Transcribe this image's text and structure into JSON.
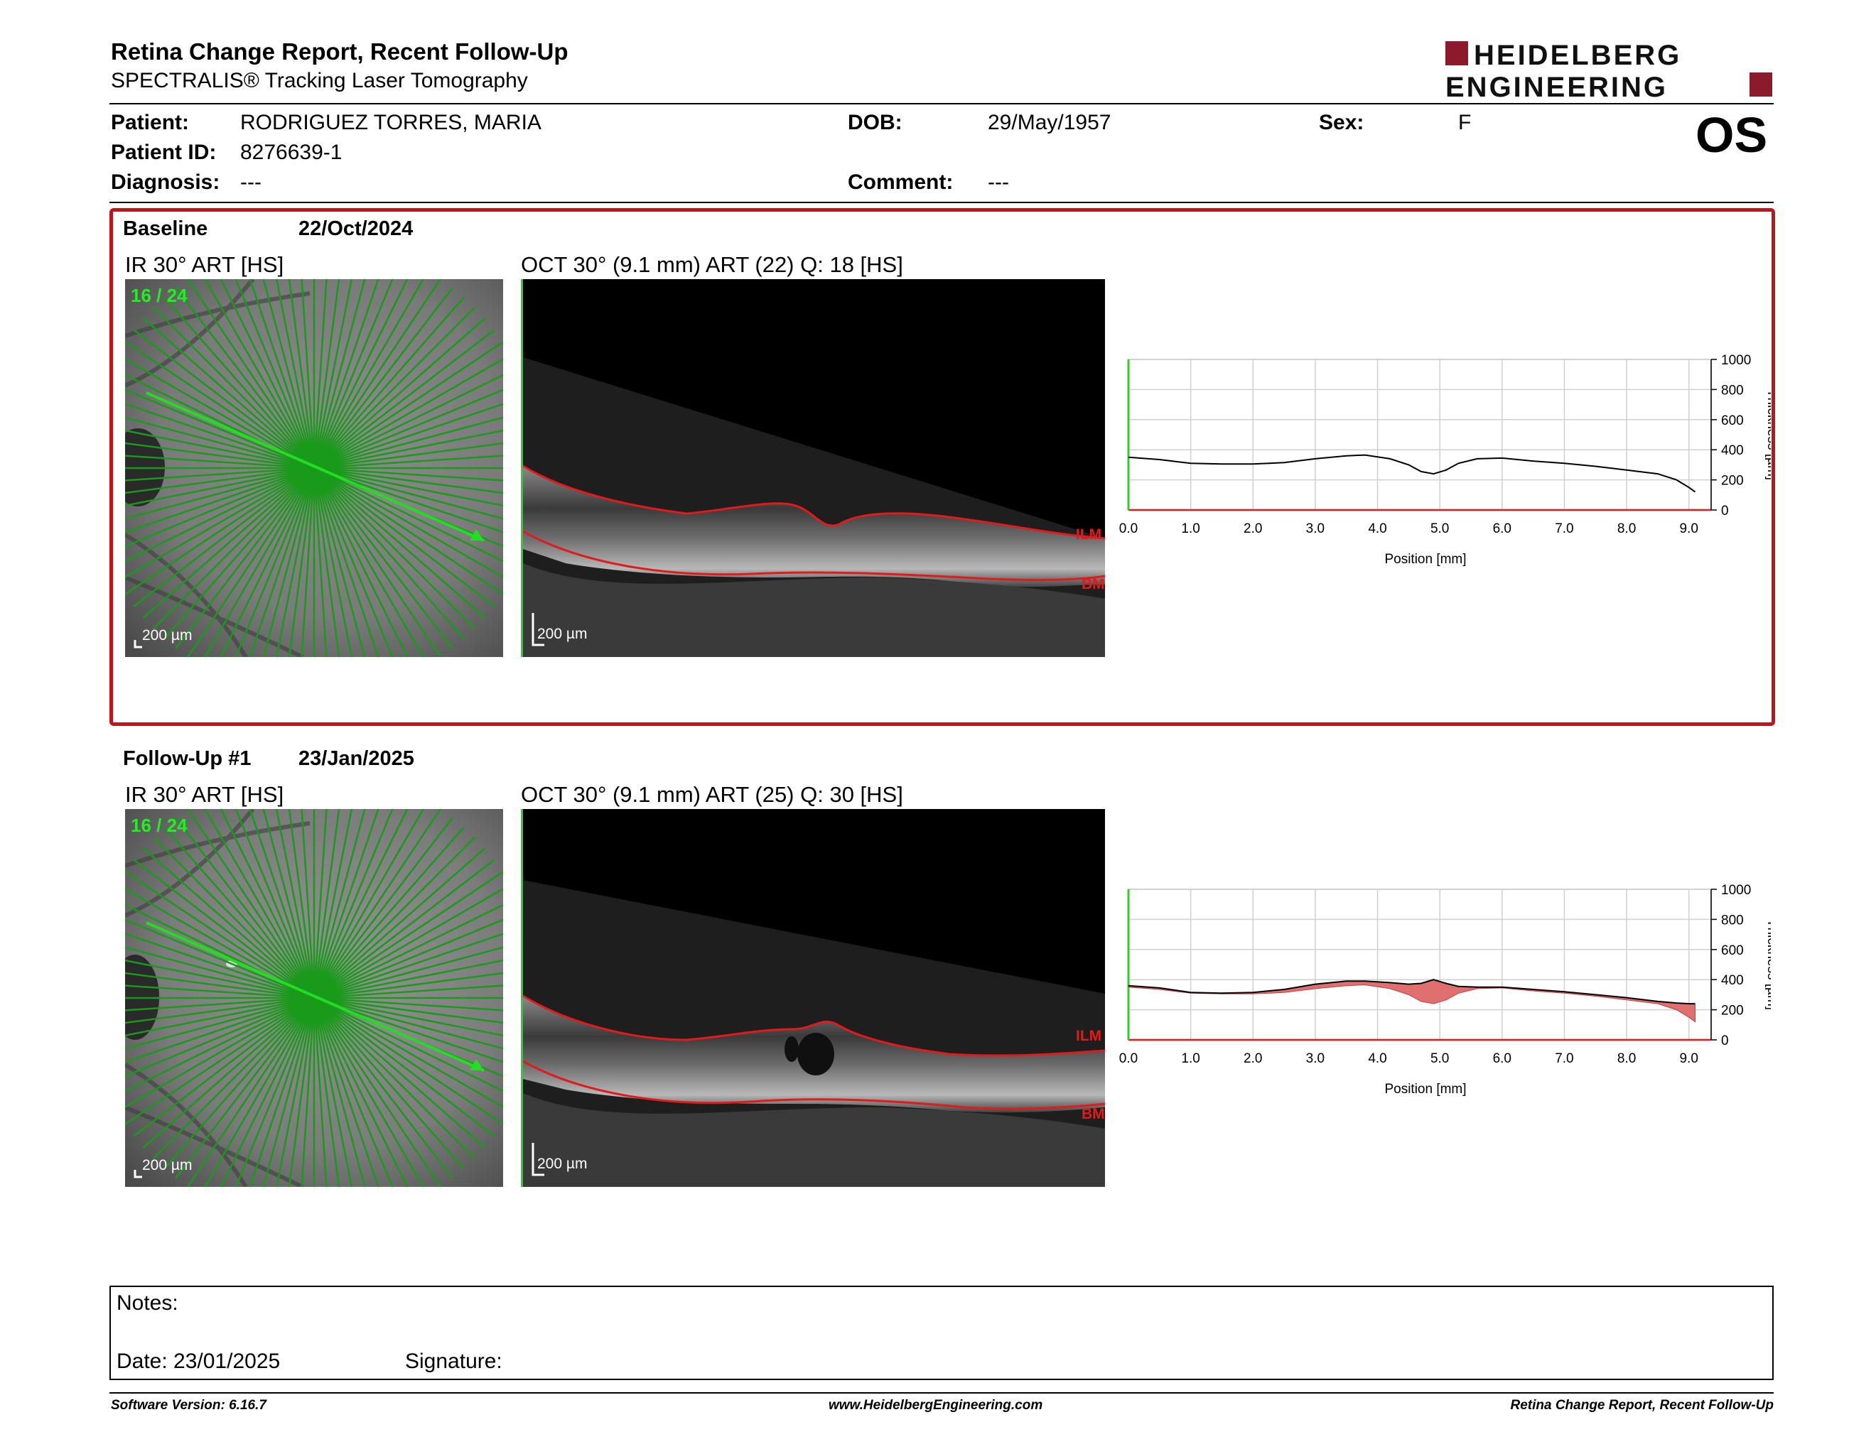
{
  "header": {
    "title": "Retina Change Report, Recent Follow-Up",
    "subtitle": "SPECTRALIS® Tracking Laser Tomography",
    "logo_line1": "HEIDELBERG",
    "logo_line2": "ENGINEERING",
    "logo_color": "#8b1a2b"
  },
  "patient": {
    "patient_label": "Patient:",
    "patient_value": "RODRIGUEZ TORRES, MARIA",
    "id_label": "Patient ID:",
    "id_value": "8276639-1",
    "diagnosis_label": "Diagnosis:",
    "diagnosis_value": "---",
    "dob_label": "DOB:",
    "dob_value": "29/May/1957",
    "comment_label": "Comment:",
    "comment_value": "---",
    "sex_label": "Sex:",
    "sex_value": "F",
    "eye": "OS"
  },
  "baseline": {
    "label": "Baseline",
    "date": "22/Oct/2024",
    "ir_title": "IR 30° ART [HS]",
    "ir_counter": "16 / 24",
    "ir_scale": "200 µm",
    "oct_title": "OCT 30° (9.1 mm) ART (22) Q: 18 [HS]",
    "oct_scale": "200 µm",
    "ilm_label": "ILM",
    "bm_label": "BM"
  },
  "followup": {
    "label": "Follow-Up #1",
    "date": "23/Jan/2025",
    "ir_title": "IR 30° ART [HS]",
    "ir_counter": "16 / 24",
    "ir_scale": "200 µm",
    "oct_title": "OCT 30° (9.1 mm) ART (25) Q: 30 [HS]",
    "oct_scale": "200 µm",
    "ilm_label": "ILM",
    "bm_label": "BM"
  },
  "chart_data": [
    {
      "type": "line",
      "name": "baseline-thickness",
      "xlabel": "Position [mm]",
      "ylabel": "Thickness [µm]",
      "xlim": [
        0,
        9.1
      ],
      "ylim": [
        0,
        1000
      ],
      "xticks": [
        "0.0",
        "1.0",
        "2.0",
        "3.0",
        "4.0",
        "5.0",
        "6.0",
        "7.0",
        "8.0",
        "9.0"
      ],
      "yticks": [
        "0",
        "200",
        "400",
        "600",
        "800",
        "1000"
      ],
      "grid": true,
      "line_color": "#000000",
      "x": [
        0.0,
        0.5,
        1.0,
        1.5,
        2.0,
        2.5,
        3.0,
        3.5,
        3.8,
        4.2,
        4.5,
        4.7,
        4.9,
        5.1,
        5.3,
        5.6,
        6.0,
        6.5,
        7.0,
        7.5,
        8.0,
        8.5,
        8.8,
        9.0,
        9.1
      ],
      "y": [
        350,
        335,
        310,
        305,
        305,
        315,
        340,
        360,
        365,
        340,
        300,
        255,
        240,
        265,
        310,
        340,
        345,
        325,
        310,
        290,
        265,
        240,
        200,
        150,
        120
      ]
    },
    {
      "type": "area",
      "name": "followup-thickness",
      "xlabel": "Position [mm]",
      "ylabel": "Thickness [µm]",
      "xlim": [
        0,
        9.1
      ],
      "ylim": [
        0,
        1000
      ],
      "xticks": [
        "0.0",
        "1.0",
        "2.0",
        "3.0",
        "4.0",
        "5.0",
        "6.0",
        "7.0",
        "8.0",
        "9.0"
      ],
      "yticks": [
        "0",
        "200",
        "400",
        "600",
        "800",
        "1000"
      ],
      "grid": true,
      "line_color": "#000000",
      "change_fill_color": "#e07070",
      "x": [
        0.0,
        0.5,
        1.0,
        1.5,
        2.0,
        2.5,
        3.0,
        3.5,
        3.8,
        4.2,
        4.5,
        4.7,
        4.9,
        5.1,
        5.3,
        5.6,
        6.0,
        6.5,
        7.0,
        7.5,
        8.0,
        8.5,
        8.8,
        9.0,
        9.1
      ],
      "y": [
        360,
        345,
        315,
        310,
        315,
        335,
        370,
        390,
        390,
        380,
        370,
        375,
        400,
        375,
        355,
        350,
        350,
        335,
        320,
        300,
        280,
        255,
        245,
        240,
        240
      ],
      "baseline_y": [
        350,
        335,
        310,
        305,
        305,
        315,
        340,
        360,
        365,
        340,
        300,
        255,
        240,
        265,
        310,
        340,
        345,
        325,
        310,
        290,
        265,
        240,
        200,
        150,
        120
      ]
    }
  ],
  "notes": {
    "notes_label": "Notes:",
    "date_label": "Date: 23/01/2025",
    "signature_label": "Signature:"
  },
  "footer": {
    "left": "Software Version: 6.16.7",
    "center": "www.HeidelbergEngineering.com",
    "right": "Retina Change Report, Recent Follow-Up"
  }
}
